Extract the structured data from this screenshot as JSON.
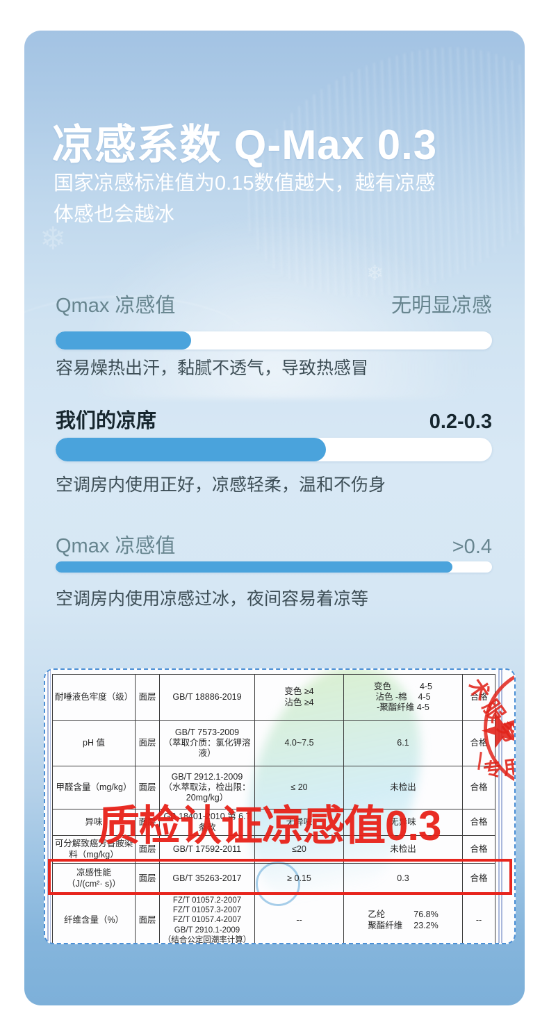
{
  "header": {
    "title": "凉感系数 Q-Max 0.3",
    "subtitle_line1": "国家凉感标准值为0.15数值越大，越有凉感",
    "subtitle_line2": "体感也会越冰"
  },
  "sections": [
    {
      "label": "Qmax 凉感值",
      "value": "无明显凉感",
      "percent": 31,
      "desc": "容易燥热出汗，黏腻不透气，导致热感冒"
    },
    {
      "label": "我们的凉席",
      "value": "0.2-0.3",
      "percent": 62,
      "desc": "空调房内使用正好，凉感轻柔，温和不伤身"
    },
    {
      "label": "Qmax 凉感值",
      "value": ">0.4",
      "percent": 91,
      "desc": "空调房内使用凉感过冰，夜间容易着凉等"
    }
  ],
  "overlay": {
    "headline": "质检认证凉感值0.3",
    "stamp_text_diagonal": "术服务",
    "stamp_text_special": "专用"
  },
  "table": {
    "rows": [
      {
        "item": "耐唾液色牢度（级）",
        "layer": "面层",
        "standard": "GB/T 18886-2019",
        "requirement": "变色 ≥4\n沾色 ≥4",
        "result": "变色　　　 4-5\n沾色  -棉　  4-5\n-聚酯纤维 4-5",
        "verdict": "合格"
      },
      {
        "item": "pH 值",
        "layer": "面层",
        "standard": "GB/T 7573-2009\n（萃取介质：氯化钾溶\n液）",
        "requirement": "4.0~7.5",
        "result": "6.1",
        "verdict": "合格"
      },
      {
        "item": "甲醛含量（mg/kg）",
        "layer": "面层",
        "standard": "GB/T 2912.1-2009\n（水萃取法，检出限：\n20mg/kg）",
        "requirement": "≤ 20",
        "result": "未检出",
        "verdict": "合格"
      },
      {
        "item": "异味",
        "layer": "面层",
        "standard": "GB 18401-2010  第 6.7\n条款",
        "requirement": "无异味",
        "result": "无异味",
        "verdict": "合格"
      },
      {
        "item": "可分解致癌芳香胺染\n料（mg/kg）",
        "layer": "面层",
        "standard": "GB/T 17592-2011",
        "requirement": "≤20",
        "result": "未检出",
        "verdict": "合格"
      },
      {
        "item": "凉感性能\n（J/(cm²· s)）",
        "layer": "面层",
        "standard": "GB/T 35263-2017",
        "requirement": "≥ 0.15",
        "result": "0.3",
        "verdict": "合格",
        "highlight": true
      },
      {
        "item": "纤维含量（%）",
        "layer": "面层",
        "standard": "FZ/T 01057.2-2007\nFZ/T 01057.3-2007\nFZ/T 01057.4-2007\nGB/T 2910.1-2009\n（结合公定回潮率计算）",
        "requirement": "--",
        "result": "乙纶　　　 76.8%\n聚酯纤维　 23.2%",
        "verdict": "--"
      }
    ]
  },
  "colors": {
    "bar_fill": "#4aa3dc",
    "accent_red": "#e7251d",
    "dashed_border": "#4b8fd5"
  }
}
